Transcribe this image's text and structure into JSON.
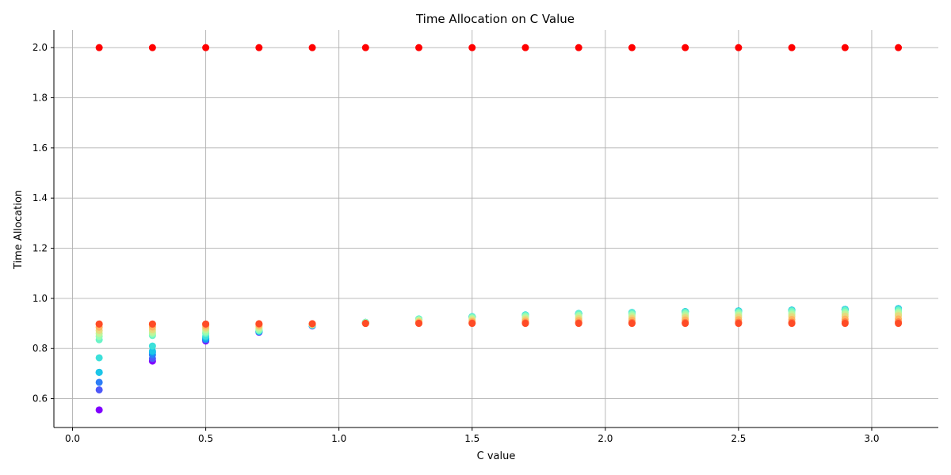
{
  "chart_data": {
    "type": "scatter",
    "title": "Time Allocation on C Value",
    "xlabel": "C value",
    "ylabel": "Time Allocation",
    "xlim": [
      -0.07,
      3.25
    ],
    "ylim": [
      0.485,
      2.07
    ],
    "xticks": [
      0.0,
      0.5,
      1.0,
      1.5,
      2.0,
      2.5,
      3.0
    ],
    "xtick_labels": [
      "0.0",
      "0.5",
      "1.0",
      "1.5",
      "2.0",
      "2.5",
      "3.0"
    ],
    "yticks": [
      0.6,
      0.8,
      1.0,
      1.2,
      1.4,
      1.6,
      1.8,
      2.0
    ],
    "ytick_labels": [
      "0.6",
      "0.8",
      "1.0",
      "1.2",
      "1.4",
      "1.6",
      "1.8",
      "2.0"
    ],
    "grid": true,
    "legend": "none",
    "colormap": "rainbow",
    "series": [
      {
        "color": "#8000ff",
        "x": [
          0.1,
          0.3,
          0.5,
          0.7,
          0.9,
          1.1,
          1.3,
          1.5,
          1.7,
          1.9,
          2.1,
          2.3,
          2.5,
          2.7,
          2.9,
          3.1
        ],
        "y": [
          0.555,
          0.75,
          0.83,
          0.865,
          0.89,
          0.902,
          0.915,
          0.925,
          0.932,
          0.938,
          0.942,
          0.946,
          0.95,
          0.953,
          0.956,
          0.959
        ]
      },
      {
        "color": "#4f58f9",
        "x": [
          0.1,
          0.3,
          0.5,
          0.7,
          0.9,
          1.1,
          1.3,
          1.5,
          1.7,
          1.9,
          2.1,
          2.3,
          2.5,
          2.7,
          2.9,
          3.1
        ],
        "y": [
          0.635,
          0.76,
          0.835,
          0.866,
          0.891,
          0.903,
          0.916,
          0.926,
          0.933,
          0.939,
          0.943,
          0.947,
          0.95,
          0.953,
          0.956,
          0.959
        ]
      },
      {
        "color": "#2c7ef7",
        "x": [
          0.1,
          0.3,
          0.5,
          0.7,
          0.9,
          1.1,
          1.3,
          1.5,
          1.7,
          1.9,
          2.1,
          2.3,
          2.5,
          2.7,
          2.9,
          3.1
        ],
        "y": [
          0.665,
          0.775,
          0.835,
          0.867,
          0.892,
          0.903,
          0.917,
          0.926,
          0.933,
          0.939,
          0.943,
          0.947,
          0.95,
          0.953,
          0.956,
          0.959
        ]
      },
      {
        "color": "#10a2f0",
        "x": [
          0.1,
          0.3,
          0.5,
          0.7,
          0.9,
          1.1,
          1.3,
          1.5,
          1.7,
          1.9,
          2.1,
          2.3,
          2.5,
          2.7,
          2.9,
          3.1
        ],
        "y": [
          0.705,
          0.785,
          0.84,
          0.868,
          0.892,
          0.904,
          0.917,
          0.927,
          0.933,
          0.939,
          0.943,
          0.947,
          0.95,
          0.953,
          0.956,
          0.959
        ]
      },
      {
        "color": "#1cc6e8",
        "x": [
          0.1,
          0.3,
          0.5,
          0.7,
          0.9,
          1.1,
          1.3,
          1.5,
          1.7,
          1.9,
          2.1,
          2.3,
          2.5,
          2.7,
          2.9,
          3.1
        ],
        "y": [
          0.705,
          0.79,
          0.845,
          0.869,
          0.893,
          0.904,
          0.917,
          0.927,
          0.934,
          0.939,
          0.943,
          0.947,
          0.95,
          0.953,
          0.956,
          0.959
        ]
      },
      {
        "color": "#3de0da",
        "x": [
          0.1,
          0.3,
          0.5,
          0.7,
          0.9,
          1.1,
          1.3,
          1.5,
          1.7,
          1.9,
          2.1,
          2.3,
          2.5,
          2.7,
          2.9,
          3.1
        ],
        "y": [
          0.763,
          0.81,
          0.85,
          0.87,
          0.893,
          0.904,
          0.918,
          0.927,
          0.934,
          0.94,
          0.944,
          0.947,
          0.95,
          0.953,
          0.956,
          0.958
        ]
      },
      {
        "color": "#6bf4c8",
        "x": [
          0.1,
          0.3,
          0.5,
          0.7,
          0.9,
          1.1,
          1.3,
          1.5,
          1.7,
          1.9,
          2.1,
          2.3,
          2.5,
          2.7,
          2.9,
          3.1
        ],
        "y": [
          0.835,
          0.852,
          0.86,
          0.872,
          0.894,
          0.904,
          0.917,
          0.926,
          0.932,
          0.938,
          0.941,
          0.944,
          0.946,
          0.949,
          0.951,
          0.953
        ]
      },
      {
        "color": "#96fdb3",
        "x": [
          0.1,
          0.3,
          0.5,
          0.7,
          0.9,
          1.1,
          1.3,
          1.5,
          1.7,
          1.9,
          2.1,
          2.3,
          2.5,
          2.7,
          2.9,
          3.1
        ],
        "y": [
          0.848,
          0.858,
          0.866,
          0.876,
          0.895,
          0.903,
          0.915,
          0.922,
          0.928,
          0.932,
          0.935,
          0.938,
          0.94,
          0.942,
          0.944,
          0.946
        ]
      },
      {
        "color": "#c0f499",
        "x": [
          0.1,
          0.3,
          0.5,
          0.7,
          0.9,
          1.1,
          1.3,
          1.5,
          1.7,
          1.9,
          2.1,
          2.3,
          2.5,
          2.7,
          2.9,
          3.1
        ],
        "y": [
          0.86,
          0.865,
          0.874,
          0.882,
          0.896,
          0.902,
          0.912,
          0.918,
          0.922,
          0.926,
          0.929,
          0.931,
          0.933,
          0.935,
          0.937,
          0.939
        ]
      },
      {
        "color": "#e6da7d",
        "x": [
          0.1,
          0.3,
          0.5,
          0.7,
          0.9,
          1.1,
          1.3,
          1.5,
          1.7,
          1.9,
          2.1,
          2.3,
          2.5,
          2.7,
          2.9,
          3.1
        ],
        "y": [
          0.872,
          0.875,
          0.882,
          0.888,
          0.897,
          0.901,
          0.908,
          0.913,
          0.916,
          0.919,
          0.921,
          0.923,
          0.925,
          0.927,
          0.929,
          0.931
        ]
      },
      {
        "color": "#ffb360",
        "x": [
          0.1,
          0.3,
          0.5,
          0.7,
          0.9,
          1.1,
          1.3,
          1.5,
          1.7,
          1.9,
          2.1,
          2.3,
          2.5,
          2.7,
          2.9,
          3.1
        ],
        "y": [
          0.885,
          0.886,
          0.89,
          0.893,
          0.898,
          0.9,
          0.904,
          0.907,
          0.909,
          0.911,
          0.913,
          0.914,
          0.915,
          0.916,
          0.917,
          0.918
        ]
      },
      {
        "color": "#ff7f45",
        "x": [
          0.1,
          0.3,
          0.5,
          0.7,
          0.9,
          1.1,
          1.3,
          1.5,
          1.7,
          1.9,
          2.1,
          2.3,
          2.5,
          2.7,
          2.9,
          3.1
        ],
        "y": [
          0.897,
          0.897,
          0.897,
          0.898,
          0.899,
          0.9,
          0.901,
          0.902,
          0.903,
          0.903,
          0.904,
          0.904,
          0.905,
          0.905,
          0.906,
          0.906
        ]
      },
      {
        "color": "#ff4b26",
        "x": [
          0.1,
          0.3,
          0.5,
          0.7,
          0.9,
          1.1,
          1.3,
          1.5,
          1.7,
          1.9,
          2.1,
          2.3,
          2.5,
          2.7,
          2.9,
          3.1
        ],
        "y": [
          0.898,
          0.898,
          0.898,
          0.899,
          0.899,
          0.9,
          0.9,
          0.9,
          0.9,
          0.9,
          0.9,
          0.9,
          0.9,
          0.9,
          0.9,
          0.9
        ]
      },
      {
        "color": "#ff0000",
        "x": [
          0.1,
          0.3,
          0.5,
          0.7,
          0.9,
          1.1,
          1.3,
          1.5,
          1.7,
          1.9,
          2.1,
          2.3,
          2.5,
          2.7,
          2.9,
          3.1
        ],
        "y": [
          2.0,
          2.0,
          2.0,
          2.0,
          2.0,
          2.0,
          2.0,
          2.0,
          2.0,
          2.0,
          2.0,
          2.0,
          2.0,
          2.0,
          2.0,
          2.0
        ]
      }
    ]
  }
}
